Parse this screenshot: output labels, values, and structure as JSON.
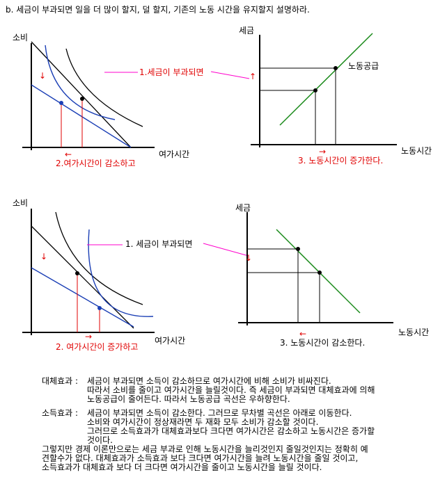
{
  "title": "b. 세금이 부과되면 일을 더 많이 할지, 덜 할지, 기존의 노동 시간을 유지할지 설명하라.",
  "panels": [
    {
      "y_label": "소비",
      "x_label": "여가시간",
      "annotation": "1.세금이 부과되면",
      "result": "2.여가시간이 감소하고",
      "arrow_shift": "↓",
      "arrow_result": "←"
    },
    {
      "y_label": "세금",
      "x_label": "노동시간",
      "curve_label": "노동공급",
      "result": "3. 노동시간이 증가한다.",
      "arrow_shift": "↑",
      "arrow_result": "→"
    },
    {
      "y_label": "소비",
      "x_label": "여가시간",
      "annotation": "1. 세금이 부과되면",
      "result": "2. 여가시간이 증가하고",
      "arrow_shift": "↓",
      "arrow_result": "→"
    },
    {
      "y_label": "세금",
      "x_label": "노동시간",
      "result": "3. 노동시간이 감소한다.",
      "arrow_shift": "↓",
      "arrow_result": "←"
    }
  ],
  "explanation": {
    "substitution": {
      "label": "대체효과 :",
      "lines": [
        "세금이 부과되면 소득이 감소하므로 여가시간에 비해 소비가 비싸진다.",
        "따라서 소비를 줄이고 여가시간을 늘릴것이다. 즉 세금이 부과되면 대체효과에 의해",
        "노동공급이 줄어든다. 따라서 노동공급 곡선은 우하향한다."
      ]
    },
    "income": {
      "label": "소득효과 :",
      "lines": [
        "세금이 부과되면 소득이 감소한다. 그러므로 무차별 곡선은 아래로 이동한다.",
        "소비와 여가시간이 정상재라면 두 재화 모두 소비가 감소할 것이다.",
        "그러므로 소득효과가 대체효과보다 크다면 여가시간은 감소하고 노동시간은 증가할",
        "것이다."
      ]
    },
    "conclusion": [
      "그렇지만 경제 이론만으로는 세금 부과로 인해 노동시간을 늘리것인지 줄일것인지는 정확히 예",
      "견할수가 없다. 대체효과가 소득효과 보다 크다면 여가시간을 늘려 노동시간을 줄일 것이고,",
      "소득효과가 대체효과 보다 더 크다면 여가시간을 줄이고 노동시간을 늘릴 것이다."
    ]
  }
}
